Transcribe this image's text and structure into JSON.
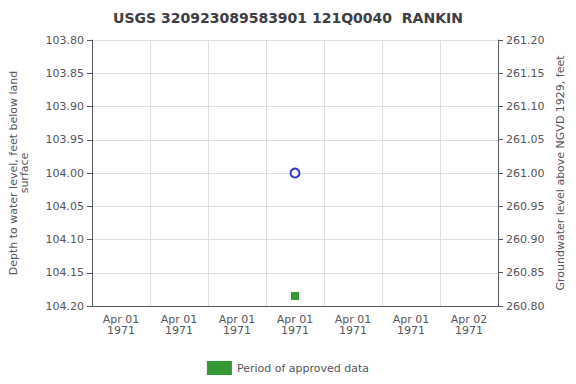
{
  "chart_data": {
    "type": "scatter",
    "title": "USGS 320923089583901 121Q0040  RANKIN",
    "categories": [
      "Apr 01\n1971",
      "Apr 01\n1971",
      "Apr 01\n1971",
      "Apr 01\n1971",
      "Apr 01\n1971",
      "Apr 01\n1971",
      "Apr 02\n1971"
    ],
    "y_label": "Depth to water level, feet below land\nsurface",
    "y2_label": "Groundwater level above NGVD 1929, feet",
    "ylim": [
      104.2,
      103.8
    ],
    "yticks": [
      {
        "value": 103.8,
        "label": "103.80"
      },
      {
        "value": 103.85,
        "label": "103.85"
      },
      {
        "value": 103.9,
        "label": "103.90"
      },
      {
        "value": 103.95,
        "label": "103.95"
      },
      {
        "value": 104.0,
        "label": "104.00"
      },
      {
        "value": 104.05,
        "label": "104.05"
      },
      {
        "value": 104.1,
        "label": "104.10"
      },
      {
        "value": 104.15,
        "label": "104.15"
      },
      {
        "value": 104.2,
        "label": "104.20"
      }
    ],
    "y2lim": [
      260.8,
      261.2
    ],
    "y2ticks": [
      {
        "value": 261.2,
        "label": "261.20"
      },
      {
        "value": 261.15,
        "label": "261.15"
      },
      {
        "value": 261.1,
        "label": "261.10"
      },
      {
        "value": 261.05,
        "label": "261.05"
      },
      {
        "value": 261.0,
        "label": "261.00"
      },
      {
        "value": 260.95,
        "label": "260.95"
      },
      {
        "value": 260.9,
        "label": "260.90"
      },
      {
        "value": 260.85,
        "label": "260.85"
      },
      {
        "value": 260.8,
        "label": "260.80"
      }
    ],
    "grid": true,
    "legend": "bottom",
    "series": [
      {
        "color": "#0000cc",
        "marker": "circle_open",
        "values": [
          null,
          null,
          null,
          104.0,
          null,
          null,
          null
        ]
      },
      {
        "name": "Period of approved data",
        "color": "#008000",
        "marker": "square",
        "values": [
          null,
          null,
          null,
          104.185,
          null,
          null,
          null
        ]
      }
    ]
  }
}
